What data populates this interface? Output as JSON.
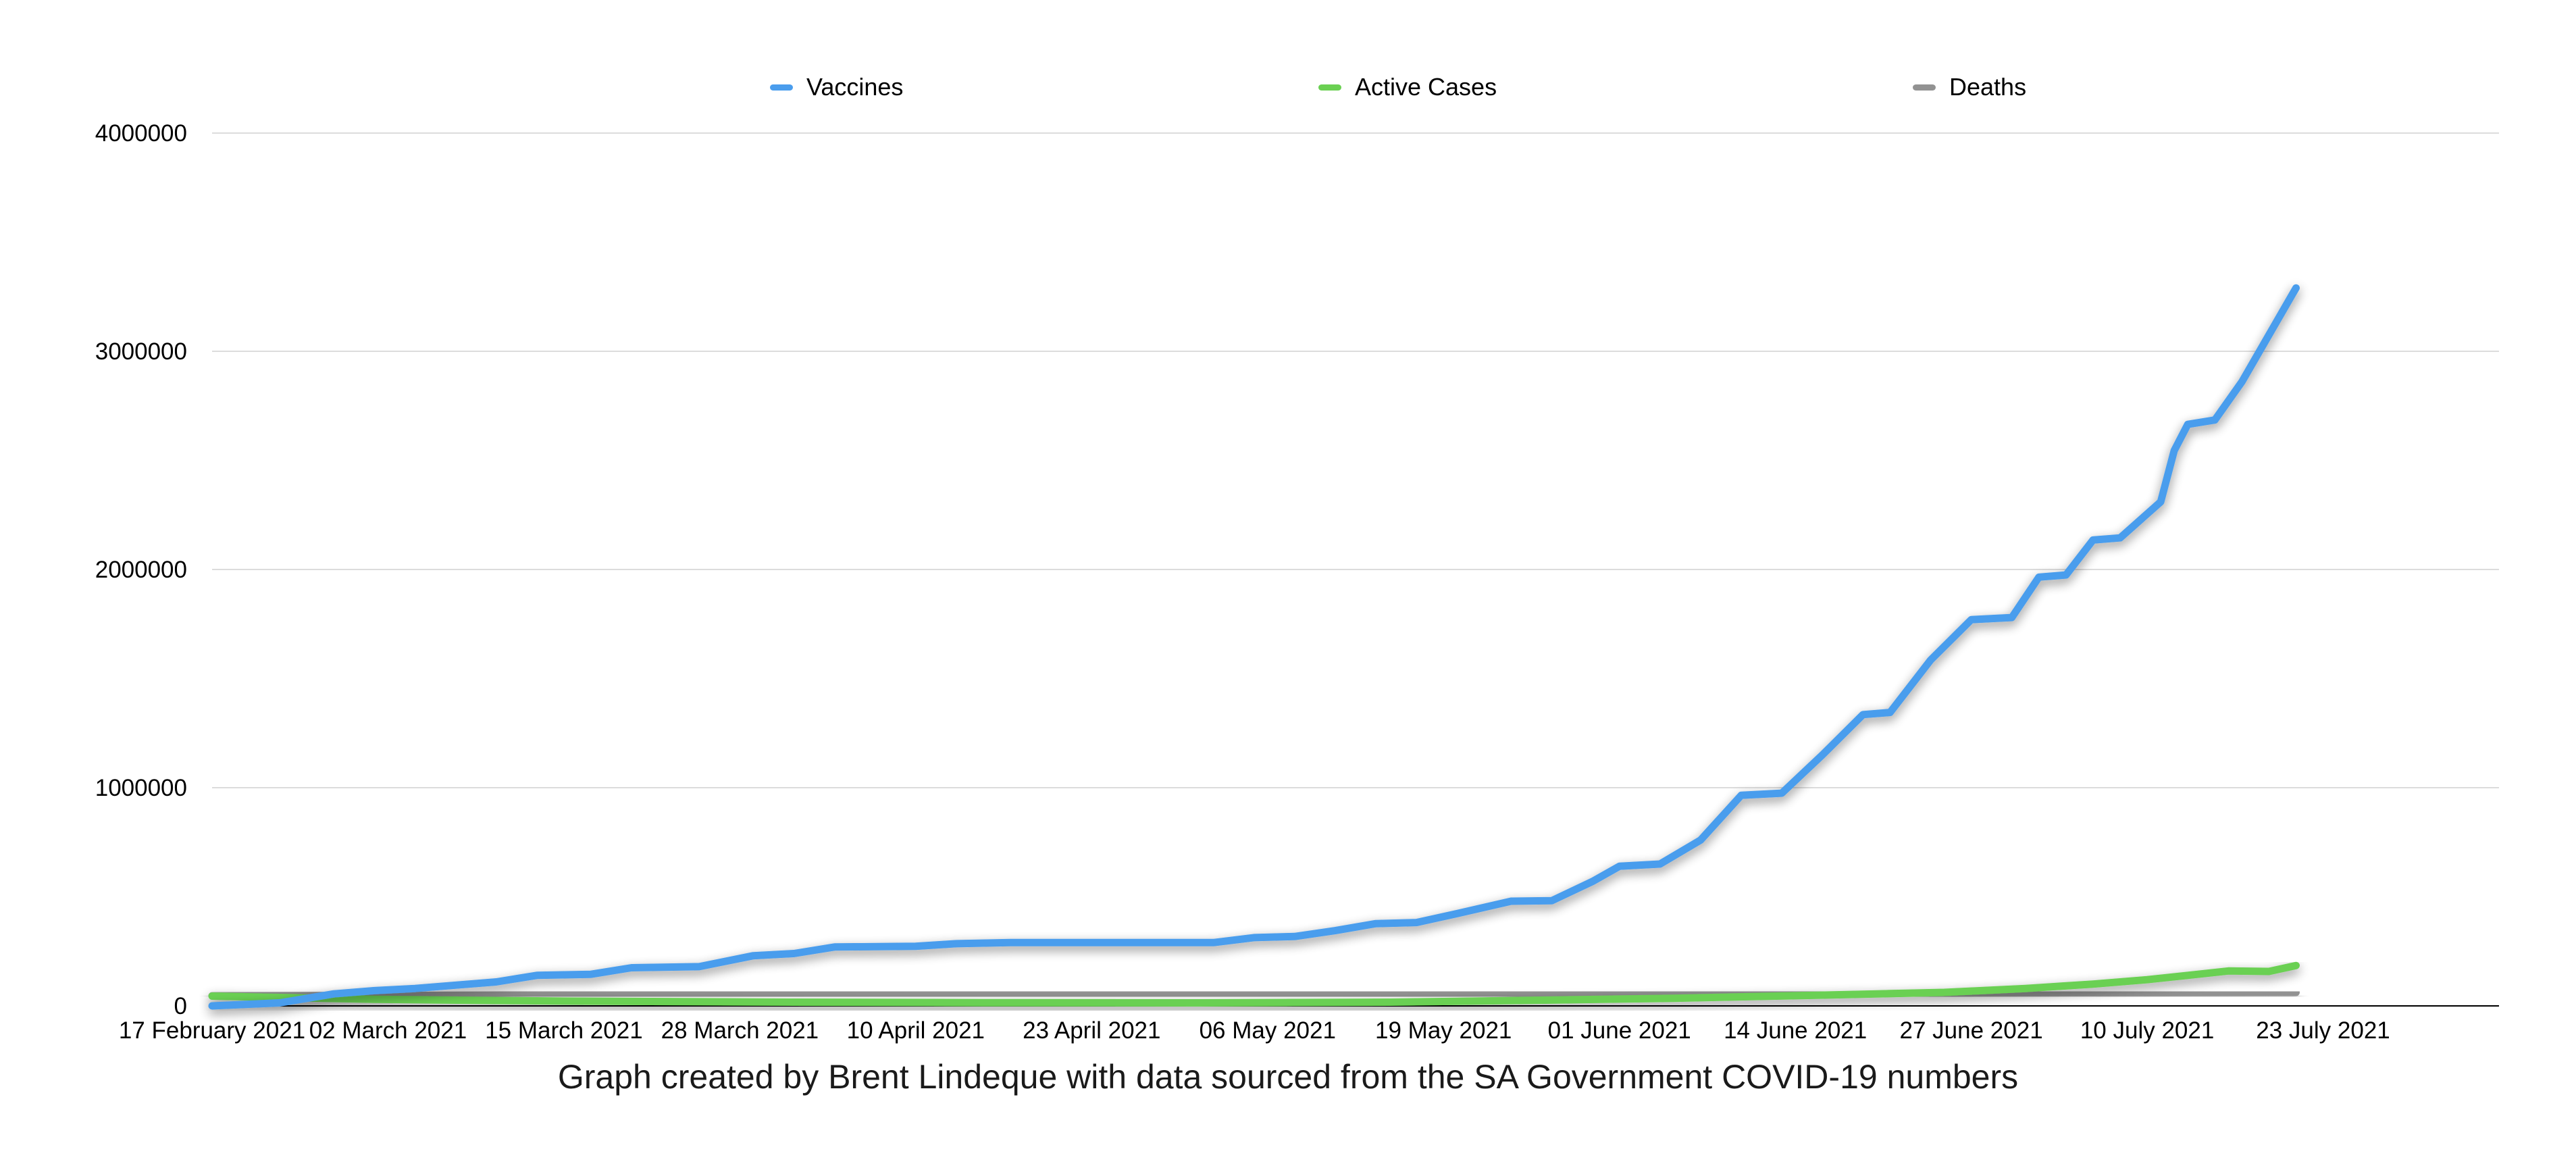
{
  "chart_data": {
    "type": "line",
    "title": "",
    "xlabel": "",
    "ylabel": "",
    "caption": "Graph created by Brent Lindeque with data sourced from the SA Government COVID-19 numbers",
    "ylim": [
      0,
      4000000
    ],
    "y_ticks": [
      "0",
      "1000000",
      "2000000",
      "3000000",
      "4000000"
    ],
    "y_tick_values": [
      0,
      1000000,
      2000000,
      3000000,
      4000000
    ],
    "x_range": [
      "2021-02-17",
      "2021-08-05"
    ],
    "x_ticks": [
      "17 February 2021",
      "02 March 2021",
      "15 March 2021",
      "28 March 2021",
      "10 April 2021",
      "23 April 2021",
      "06 May 2021",
      "19 May 2021",
      "01 June 2021",
      "14 June 2021",
      "27 June 2021",
      "10 July 2021",
      "23 July 2021"
    ],
    "x_tick_dates": [
      "2021-02-17",
      "2021-03-02",
      "2021-03-15",
      "2021-03-28",
      "2021-04-10",
      "2021-04-23",
      "2021-05-06",
      "2021-05-19",
      "2021-06-01",
      "2021-06-14",
      "2021-06-27",
      "2021-07-10",
      "2021-07-23"
    ],
    "grid": true,
    "legend_position": "top",
    "series": [
      {
        "name": "Vaccines",
        "color": "#4a9ded",
        "points": [
          [
            "2021-02-17",
            0
          ],
          [
            "2021-02-22",
            14000
          ],
          [
            "2021-02-26",
            55000
          ],
          [
            "2021-03-01",
            70000
          ],
          [
            "2021-03-04",
            80000
          ],
          [
            "2021-03-07",
            95000
          ],
          [
            "2021-03-10",
            110000
          ],
          [
            "2021-03-13",
            140000
          ],
          [
            "2021-03-17",
            145000
          ],
          [
            "2021-03-20",
            175000
          ],
          [
            "2021-03-25",
            180000
          ],
          [
            "2021-03-29",
            230000
          ],
          [
            "2021-04-01",
            240000
          ],
          [
            "2021-04-04",
            270000
          ],
          [
            "2021-04-10",
            273000
          ],
          [
            "2021-04-13",
            285000
          ],
          [
            "2021-04-17",
            290000
          ],
          [
            "2021-04-27",
            290000
          ],
          [
            "2021-05-02",
            290000
          ],
          [
            "2021-05-05",
            313000
          ],
          [
            "2021-05-08",
            318000
          ],
          [
            "2021-05-11",
            345000
          ],
          [
            "2021-05-14",
            377000
          ],
          [
            "2021-05-17",
            382000
          ],
          [
            "2021-05-20",
            423000
          ],
          [
            "2021-05-24",
            480000
          ],
          [
            "2021-05-27",
            482000
          ],
          [
            "2021-05-30",
            570000
          ],
          [
            "2021-06-01",
            640000
          ],
          [
            "2021-06-04",
            650000
          ],
          [
            "2021-06-07",
            760000
          ],
          [
            "2021-06-10",
            965000
          ],
          [
            "2021-06-13",
            975000
          ],
          [
            "2021-06-16",
            1150000
          ],
          [
            "2021-06-19",
            1335000
          ],
          [
            "2021-06-21",
            1345000
          ],
          [
            "2021-06-24",
            1585000
          ],
          [
            "2021-06-27",
            1770000
          ],
          [
            "2021-06-30",
            1780000
          ],
          [
            "2021-07-02",
            1965000
          ],
          [
            "2021-07-04",
            1975000
          ],
          [
            "2021-07-06",
            2135000
          ],
          [
            "2021-07-08",
            2145000
          ],
          [
            "2021-07-11",
            2310000
          ],
          [
            "2021-07-12",
            2545000
          ],
          [
            "2021-07-13",
            2665000
          ],
          [
            "2021-07-15",
            2685000
          ],
          [
            "2021-07-17",
            2860000
          ],
          [
            "2021-07-21",
            3290000
          ]
        ]
      },
      {
        "name": "Active Cases",
        "color": "#6ad052",
        "points": [
          [
            "2021-02-17",
            45000
          ],
          [
            "2021-03-01",
            30000
          ],
          [
            "2021-03-15",
            22000
          ],
          [
            "2021-04-01",
            17000
          ],
          [
            "2021-04-15",
            15000
          ],
          [
            "2021-05-01",
            14000
          ],
          [
            "2021-05-15",
            17000
          ],
          [
            "2021-05-25",
            25000
          ],
          [
            "2021-06-05",
            35000
          ],
          [
            "2021-06-15",
            48000
          ],
          [
            "2021-06-25",
            62000
          ],
          [
            "2021-07-01",
            80000
          ],
          [
            "2021-07-06",
            100000
          ],
          [
            "2021-07-10",
            120000
          ],
          [
            "2021-07-13",
            140000
          ],
          [
            "2021-07-16",
            160000
          ],
          [
            "2021-07-19",
            158000
          ],
          [
            "2021-07-21",
            185000
          ]
        ]
      },
      {
        "name": "Deaths",
        "color": "#929292",
        "points": [
          [
            "2021-02-17",
            46000
          ],
          [
            "2021-03-15",
            50000
          ],
          [
            "2021-04-15",
            53000
          ],
          [
            "2021-05-15",
            55000
          ],
          [
            "2021-06-15",
            58000
          ],
          [
            "2021-07-21",
            62000
          ]
        ]
      }
    ]
  }
}
